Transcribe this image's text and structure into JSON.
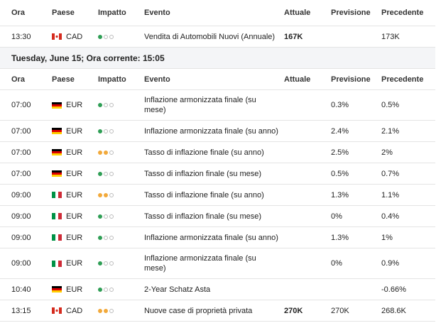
{
  "columns": [
    "Ora",
    "Paese",
    "Impatto",
    "Evento",
    "Attuale",
    "Previsione",
    "Precedente"
  ],
  "tables": [
    {
      "rows": [
        {
          "time": "13:30",
          "flag": "CA",
          "currency": "CAD",
          "impact": 1,
          "event": "Vendita di Automobili Nuovi (Annuale)",
          "actual": "167K",
          "forecast": null,
          "previous": "173K"
        }
      ]
    },
    {
      "heading": "Tuesday, June 15; Ora corrente: 15:05",
      "rows": [
        {
          "time": "07:00",
          "flag": "DE",
          "currency": "EUR",
          "impact": 1,
          "event": "Inflazione armonizzata finale (su mese)",
          "actual": null,
          "forecast": "0.3%",
          "previous": "0.5%"
        },
        {
          "time": "07:00",
          "flag": "DE",
          "currency": "EUR",
          "impact": 1,
          "event": "Inflazione armonizzata finale (su anno)",
          "actual": null,
          "forecast": "2.4%",
          "previous": "2.1%"
        },
        {
          "time": "07:00",
          "flag": "DE",
          "currency": "EUR",
          "impact": 2,
          "event": "Tasso di inflazione finale (su anno)",
          "actual": null,
          "forecast": "2.5%",
          "previous": "2%"
        },
        {
          "time": "07:00",
          "flag": "DE",
          "currency": "EUR",
          "impact": 1,
          "event": "Tasso di inflazion finale (su mese)",
          "actual": null,
          "forecast": "0.5%",
          "previous": "0.7%"
        },
        {
          "time": "09:00",
          "flag": "IT",
          "currency": "EUR",
          "impact": 2,
          "event": "Tasso di inflazione finale (su anno)",
          "actual": null,
          "forecast": "1.3%",
          "previous": "1.1%"
        },
        {
          "time": "09:00",
          "flag": "IT",
          "currency": "EUR",
          "impact": 1,
          "event": "Tasso di inflazion finale (su mese)",
          "actual": null,
          "forecast": "0%",
          "previous": "0.4%"
        },
        {
          "time": "09:00",
          "flag": "IT",
          "currency": "EUR",
          "impact": 1,
          "event": "Inflazione armonizzata finale (su anno)",
          "actual": null,
          "forecast": "1.3%",
          "previous": "1%"
        },
        {
          "time": "09:00",
          "flag": "IT",
          "currency": "EUR",
          "impact": 1,
          "event": "Inflazione armonizzata finale (su mese)",
          "actual": null,
          "forecast": "0%",
          "previous": "0.9%"
        },
        {
          "time": "10:40",
          "flag": "DE",
          "currency": "EUR",
          "impact": 1,
          "event": "2-Year Schatz Asta",
          "actual": null,
          "forecast": null,
          "previous": "-0.66%"
        },
        {
          "time": "13:15",
          "flag": "CA",
          "currency": "CAD",
          "impact": 2,
          "event": "Nuove case di proprietà privata",
          "actual": "270K",
          "forecast": "270K",
          "previous": "268.6K"
        }
      ]
    }
  ]
}
